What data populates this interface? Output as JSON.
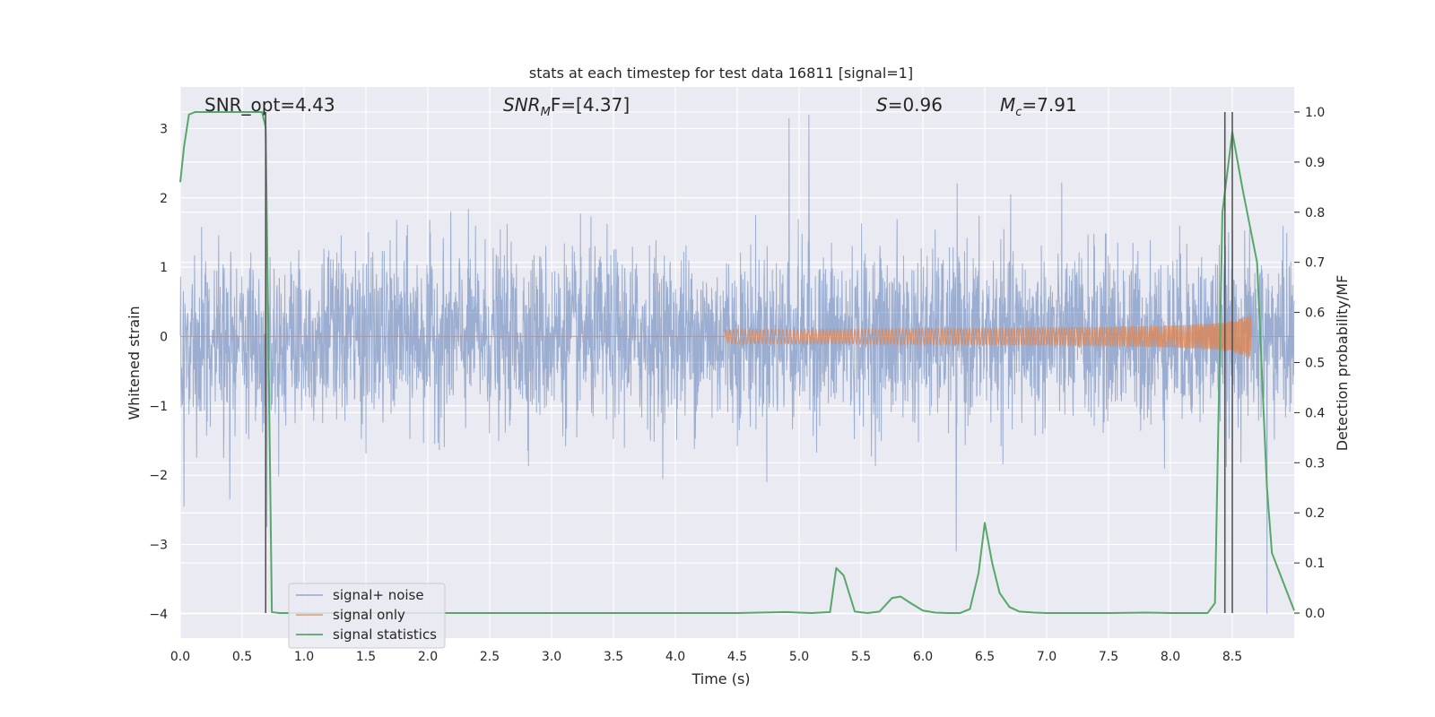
{
  "chart_data": {
    "type": "line",
    "title": "stats at each timestep for test data 16811 [signal=1]",
    "xlabel": "Time (s)",
    "ylabel": "Whitened strain",
    "ylabel_right": "Detection probability/MF",
    "xlim": [
      0.0,
      9.0
    ],
    "ylim": [
      -4.35,
      3.6
    ],
    "ylim_right": [
      -0.05,
      1.05
    ],
    "xticks": [
      0.0,
      0.5,
      1.0,
      1.5,
      2.0,
      2.5,
      3.0,
      3.5,
      4.0,
      4.5,
      5.0,
      5.5,
      6.0,
      6.5,
      7.0,
      7.5,
      8.0,
      8.5
    ],
    "xtick_labels": [
      "0.0",
      "0.5",
      "1.0",
      "1.5",
      "2.0",
      "2.5",
      "3.0",
      "3.5",
      "4.0",
      "4.5",
      "5.0",
      "5.5",
      "6.0",
      "6.5",
      "7.0",
      "7.5",
      "8.0",
      "8.5"
    ],
    "yticks": [
      -4,
      -3,
      -2,
      -1,
      0,
      1,
      2,
      3
    ],
    "ytick_labels": [
      "−4",
      "−3",
      "−2",
      "−1",
      "0",
      "1",
      "2",
      "3"
    ],
    "yticks_right": [
      0.0,
      0.1,
      0.2,
      0.3,
      0.4,
      0.5,
      0.6,
      0.7,
      0.8,
      0.9,
      1.0
    ],
    "ytick_labels_right": [
      "0.0",
      "0.1",
      "0.2",
      "0.3",
      "0.4",
      "0.5",
      "0.6",
      "0.7",
      "0.8",
      "0.9",
      "1.0"
    ],
    "grid": true,
    "legend_position": "lower-left",
    "annotations": [
      {
        "text": "SNR_opt=4.43"
      },
      {
        "text": "SNR",
        "sub": "M",
        "after": "F=[4.37]"
      },
      {
        "text": "S",
        "after": "=0.96"
      },
      {
        "text": "M",
        "sub": "c",
        "after": "=7.91"
      }
    ],
    "vertical_markers": [
      0.69,
      8.44,
      8.5
    ],
    "series": [
      {
        "name": "signal+ noise",
        "color": "#4c72b0",
        "kind": "noise",
        "duration": 9.0,
        "typical_range": [
          -1.3,
          1.3
        ],
        "extreme_peaks": [
          {
            "x": 0.03,
            "y": -2.45
          },
          {
            "x": 0.4,
            "y": -2.35
          },
          {
            "x": 0.7,
            "y": -2.75
          },
          {
            "x": 4.92,
            "y": 3.15
          },
          {
            "x": 5.08,
            "y": 3.2
          },
          {
            "x": 6.27,
            "y": -3.1
          },
          {
            "x": 8.78,
            "y": -4.0
          }
        ]
      },
      {
        "name": "signal only",
        "color": "#dd8452",
        "kind": "chirp",
        "start_x": 4.4,
        "merger_x": 8.65,
        "peak_amplitude": 0.42
      },
      {
        "name": "signal statistics",
        "color": "#55a868",
        "axis": "right",
        "x": [
          0.0,
          0.03,
          0.07,
          0.12,
          0.2,
          0.3,
          0.4,
          0.5,
          0.6,
          0.66,
          0.69,
          0.74,
          0.8,
          1.0,
          2.0,
          3.0,
          4.0,
          4.5,
          4.9,
          5.0,
          5.1,
          5.25,
          5.3,
          5.36,
          5.45,
          5.55,
          5.65,
          5.75,
          5.82,
          5.9,
          6.0,
          6.1,
          6.2,
          6.3,
          6.38,
          6.45,
          6.5,
          6.56,
          6.62,
          6.7,
          6.78,
          6.9,
          7.0,
          7.3,
          7.5,
          7.8,
          8.0,
          8.3,
          8.36,
          8.42,
          8.5,
          8.58,
          8.7,
          8.78,
          8.82,
          9.0
        ],
        "y": [
          0.86,
          0.93,
          0.995,
          1.0,
          1.0,
          1.0,
          1.0,
          1.0,
          1.0,
          1.0,
          0.97,
          0.002,
          0.0,
          0.0,
          0.0,
          0.0,
          0.0,
          0.0,
          0.002,
          0.001,
          0.0,
          0.002,
          0.09,
          0.075,
          0.003,
          0.0,
          0.003,
          0.03,
          0.033,
          0.02,
          0.005,
          0.001,
          0.0,
          0.0,
          0.008,
          0.08,
          0.18,
          0.1,
          0.04,
          0.012,
          0.003,
          0.001,
          0.0,
          0.0,
          0.0,
          0.001,
          0.0,
          0.0,
          0.02,
          0.8,
          0.96,
          0.85,
          0.7,
          0.25,
          0.12,
          0.005
        ]
      }
    ]
  }
}
